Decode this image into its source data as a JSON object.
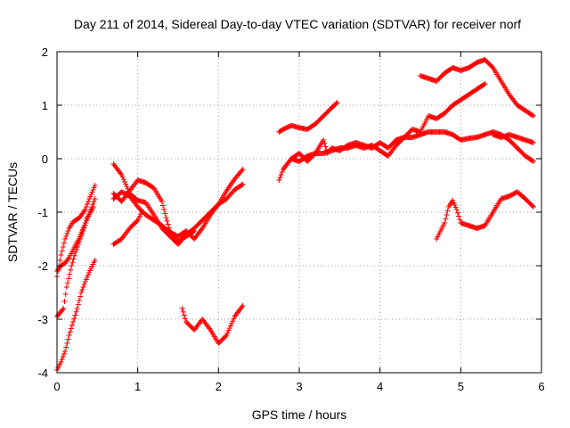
{
  "chart_data": {
    "type": "scatter",
    "title": "Day 211 of 2014, Sidereal Day-to-day VTEC variation (SDTVAR) for receiver norf",
    "xlabel": "GPS time / hours",
    "ylabel": "SDTVAR / TECUs",
    "xlim": [
      0,
      6
    ],
    "ylim": [
      -4,
      2
    ],
    "xticks": [
      0,
      1,
      2,
      3,
      4,
      5,
      6
    ],
    "yticks": [
      -4,
      -3,
      -2,
      -1,
      0,
      1,
      2
    ],
    "grid": true,
    "marker": "+",
    "color": "#ff0000",
    "series": [
      {
        "name": "trace-1",
        "points": [
          [
            0.0,
            -2.2
          ],
          [
            0.05,
            -1.8
          ],
          [
            0.1,
            -1.5
          ],
          [
            0.15,
            -1.3
          ],
          [
            0.2,
            -1.18
          ],
          [
            0.28,
            -1.1
          ],
          [
            0.35,
            -0.95
          ],
          [
            0.4,
            -0.75
          ],
          [
            0.47,
            -0.5
          ]
        ]
      },
      {
        "name": "trace-2",
        "points": [
          [
            0.0,
            -2.1
          ],
          [
            0.05,
            -2.0
          ],
          [
            0.1,
            -1.95
          ],
          [
            0.15,
            -1.85
          ],
          [
            0.2,
            -1.7
          ],
          [
            0.27,
            -1.5
          ],
          [
            0.35,
            -1.2
          ],
          [
            0.42,
            -0.95
          ],
          [
            0.47,
            -0.75
          ]
        ]
      },
      {
        "name": "trace-3",
        "points": [
          [
            0.0,
            -2.95
          ],
          [
            0.08,
            -2.8
          ],
          [
            0.12,
            -2.4
          ],
          [
            0.18,
            -2.0
          ],
          [
            0.23,
            -1.75
          ],
          [
            0.3,
            -1.45
          ],
          [
            0.38,
            -1.1
          ],
          [
            0.45,
            -0.9
          ]
        ]
      },
      {
        "name": "trace-4",
        "points": [
          [
            0.0,
            -3.95
          ],
          [
            0.05,
            -3.8
          ],
          [
            0.1,
            -3.6
          ],
          [
            0.15,
            -3.3
          ],
          [
            0.2,
            -3.05
          ],
          [
            0.25,
            -2.8
          ],
          [
            0.3,
            -2.5
          ],
          [
            0.35,
            -2.3
          ],
          [
            0.42,
            -2.05
          ],
          [
            0.47,
            -1.9
          ]
        ]
      },
      {
        "name": "trace-5",
        "points": [
          [
            0.7,
            -0.75
          ],
          [
            0.8,
            -0.62
          ],
          [
            0.9,
            -0.7
          ],
          [
            1.0,
            -0.9
          ],
          [
            1.1,
            -1.05
          ],
          [
            1.2,
            -1.15
          ],
          [
            1.3,
            -1.25
          ],
          [
            1.4,
            -1.38
          ],
          [
            1.5,
            -1.45
          ],
          [
            1.6,
            -1.35
          ],
          [
            1.7,
            -1.5
          ],
          [
            1.8,
            -1.3
          ],
          [
            1.9,
            -1.05
          ],
          [
            2.0,
            -0.85
          ],
          [
            2.1,
            -0.75
          ],
          [
            2.2,
            -0.58
          ],
          [
            2.3,
            -0.48
          ]
        ]
      },
      {
        "name": "trace-6",
        "points": [
          [
            0.7,
            -0.65
          ],
          [
            0.8,
            -0.8
          ],
          [
            0.9,
            -0.6
          ],
          [
            1.0,
            -0.4
          ],
          [
            1.1,
            -0.45
          ],
          [
            1.2,
            -0.55
          ],
          [
            1.3,
            -0.8
          ],
          [
            1.35,
            -1.1
          ],
          [
            1.4,
            -1.35
          ],
          [
            1.5,
            -1.55
          ],
          [
            1.6,
            -1.45
          ],
          [
            1.7,
            -1.35
          ]
        ]
      },
      {
        "name": "trace-7",
        "points": [
          [
            0.7,
            -0.1
          ],
          [
            0.8,
            -0.3
          ],
          [
            0.9,
            -0.65
          ],
          [
            1.0,
            -0.78
          ],
          [
            1.1,
            -0.82
          ],
          [
            1.2,
            -1.05
          ],
          [
            1.3,
            -1.3
          ],
          [
            1.4,
            -1.45
          ],
          [
            1.5,
            -1.6
          ],
          [
            1.6,
            -1.42
          ],
          [
            1.7,
            -1.3
          ],
          [
            1.8,
            -1.15
          ],
          [
            1.9,
            -1.0
          ],
          [
            2.0,
            -0.85
          ],
          [
            2.1,
            -0.6
          ],
          [
            2.2,
            -0.38
          ],
          [
            2.3,
            -0.2
          ]
        ]
      },
      {
        "name": "trace-8",
        "points": [
          [
            0.7,
            -1.6
          ],
          [
            0.8,
            -1.5
          ],
          [
            0.9,
            -1.3
          ],
          [
            1.0,
            -1.15
          ],
          [
            1.05,
            -1.0
          ]
        ]
      },
      {
        "name": "trace-9",
        "points": [
          [
            1.55,
            -2.8
          ],
          [
            1.6,
            -3.05
          ],
          [
            1.7,
            -3.2
          ],
          [
            1.8,
            -3.0
          ],
          [
            1.9,
            -3.2
          ],
          [
            2.0,
            -3.45
          ],
          [
            2.1,
            -3.3
          ],
          [
            2.2,
            -2.95
          ],
          [
            2.3,
            -2.75
          ]
        ]
      },
      {
        "name": "trace-10",
        "points": [
          [
            2.75,
            0.5
          ],
          [
            2.8,
            0.55
          ],
          [
            2.9,
            0.62
          ],
          [
            3.0,
            0.58
          ],
          [
            3.1,
            0.55
          ],
          [
            3.2,
            0.65
          ],
          [
            3.3,
            0.8
          ],
          [
            3.4,
            0.95
          ],
          [
            3.47,
            1.05
          ]
        ]
      },
      {
        "name": "trace-11",
        "points": [
          [
            2.75,
            -0.4
          ],
          [
            2.8,
            -0.2
          ],
          [
            2.9,
            0.0
          ],
          [
            3.0,
            -0.05
          ],
          [
            3.1,
            0.05
          ],
          [
            3.2,
            0.1
          ],
          [
            3.3,
            0.1
          ],
          [
            3.4,
            0.15
          ],
          [
            3.5,
            0.2
          ],
          [
            3.6,
            0.2
          ],
          [
            3.7,
            0.25
          ],
          [
            3.8,
            0.2
          ],
          [
            3.9,
            0.25
          ],
          [
            4.0,
            0.15
          ],
          [
            4.1,
            0.05
          ],
          [
            4.2,
            0.25
          ],
          [
            4.3,
            0.4
          ],
          [
            4.4,
            0.55
          ],
          [
            4.5,
            0.5
          ],
          [
            4.6,
            0.8
          ],
          [
            4.7,
            0.75
          ],
          [
            4.8,
            0.85
          ],
          [
            4.9,
            1.0
          ],
          [
            5.0,
            1.1
          ],
          [
            5.1,
            1.2
          ],
          [
            5.2,
            1.3
          ],
          [
            5.3,
            1.4
          ]
        ]
      },
      {
        "name": "trace-12",
        "points": [
          [
            2.8,
            -0.2
          ],
          [
            2.9,
            0.0
          ],
          [
            3.0,
            0.1
          ],
          [
            3.1,
            -0.05
          ],
          [
            3.2,
            0.1
          ],
          [
            3.3,
            0.35
          ],
          [
            3.35,
            0.1
          ],
          [
            3.4,
            0.2
          ],
          [
            3.5,
            0.15
          ],
          [
            3.6,
            0.25
          ],
          [
            3.7,
            0.3
          ],
          [
            3.8,
            0.25
          ],
          [
            3.9,
            0.2
          ],
          [
            4.0,
            0.3
          ],
          [
            4.1,
            0.2
          ],
          [
            4.2,
            0.35
          ],
          [
            4.3,
            0.4
          ],
          [
            4.4,
            0.4
          ],
          [
            4.5,
            0.45
          ],
          [
            4.6,
            0.5
          ],
          [
            4.7,
            0.5
          ],
          [
            4.8,
            0.5
          ],
          [
            4.9,
            0.45
          ],
          [
            5.0,
            0.35
          ],
          [
            5.1,
            0.38
          ],
          [
            5.2,
            0.4
          ],
          [
            5.3,
            0.45
          ],
          [
            5.4,
            0.5
          ],
          [
            5.5,
            0.45
          ],
          [
            5.6,
            0.35
          ],
          [
            5.7,
            0.2
          ],
          [
            5.8,
            0.05
          ],
          [
            5.9,
            -0.05
          ]
        ]
      },
      {
        "name": "trace-13",
        "points": [
          [
            4.5,
            1.55
          ],
          [
            4.6,
            1.5
          ],
          [
            4.7,
            1.45
          ],
          [
            4.8,
            1.6
          ],
          [
            4.9,
            1.7
          ],
          [
            5.0,
            1.65
          ],
          [
            5.1,
            1.7
          ],
          [
            5.2,
            1.8
          ],
          [
            5.3,
            1.85
          ],
          [
            5.4,
            1.7
          ],
          [
            5.5,
            1.45
          ],
          [
            5.6,
            1.2
          ],
          [
            5.7,
            1.0
          ],
          [
            5.8,
            0.9
          ],
          [
            5.9,
            0.8
          ]
        ]
      },
      {
        "name": "trace-14",
        "points": [
          [
            5.4,
            0.45
          ],
          [
            5.5,
            0.4
          ],
          [
            5.6,
            0.45
          ],
          [
            5.7,
            0.4
          ],
          [
            5.8,
            0.35
          ],
          [
            5.9,
            0.3
          ]
        ]
      },
      {
        "name": "trace-15",
        "points": [
          [
            4.7,
            -1.5
          ],
          [
            4.8,
            -1.2
          ],
          [
            4.85,
            -0.9
          ],
          [
            4.9,
            -0.78
          ],
          [
            4.95,
            -0.95
          ],
          [
            5.0,
            -1.2
          ],
          [
            5.1,
            -1.25
          ],
          [
            5.2,
            -1.3
          ],
          [
            5.3,
            -1.25
          ],
          [
            5.4,
            -1.0
          ],
          [
            5.5,
            -0.75
          ],
          [
            5.6,
            -0.7
          ],
          [
            5.7,
            -0.62
          ],
          [
            5.8,
            -0.75
          ],
          [
            5.9,
            -0.9
          ]
        ]
      }
    ]
  }
}
